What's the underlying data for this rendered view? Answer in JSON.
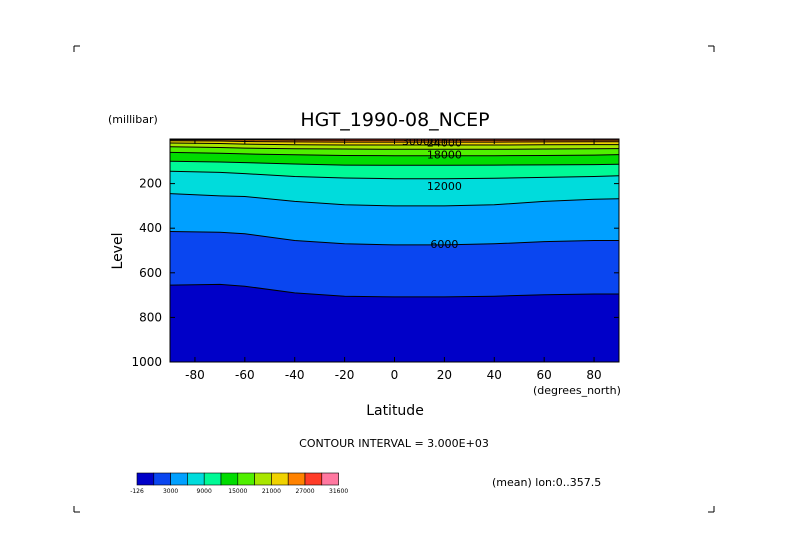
{
  "chart_data": {
    "type": "contour",
    "title": "HGT_1990-08_NCEP",
    "xlabel": "Latitude",
    "xunit": "(degrees_north)",
    "ylabel": "Level",
    "yunit": "(millibar)",
    "xlim": [
      -90,
      90
    ],
    "ylim": [
      1000,
      0
    ],
    "y_axis_reversed": true,
    "x_ticks": [
      "-80",
      "-60",
      "-40",
      "-20",
      "0",
      "20",
      "40",
      "60",
      "80"
    ],
    "x_tick_values": [
      -80,
      -60,
      -40,
      -20,
      0,
      20,
      40,
      60,
      80
    ],
    "y_ticks": [
      "200",
      "400",
      "600",
      "800",
      "1000"
    ],
    "y_tick_values": [
      200,
      400,
      600,
      800,
      1000
    ],
    "contour_interval_text": "CONTOUR INTERVAL = 3.000E+03",
    "mean_text": "(mean) lon:0..357.5",
    "contour_labels": [
      {
        "text": "30000",
        "lat": 10,
        "level": 10
      },
      {
        "text": "24000",
        "lat": 20,
        "level": 15
      },
      {
        "text": "18000",
        "lat": 20,
        "level": 70
      },
      {
        "text": "12000",
        "lat": 20,
        "level": 210
      },
      {
        "text": "6000",
        "lat": 20,
        "level": 470
      }
    ],
    "band_colors": [
      "#0000c8",
      "#0a46f0",
      "#00a0ff",
      "#00dcdc",
      "#00fa96",
      "#00dc00",
      "#50f000",
      "#a8e600",
      "#f0d200",
      "#ff8200",
      "#ff3c28",
      "#ff78a0"
    ],
    "contours": [
      {
        "value": 3000,
        "lat": [
          -90,
          -70,
          -60,
          -40,
          -20,
          0,
          20,
          40,
          60,
          80,
          90
        ],
        "level": [
          655,
          652,
          660,
          690,
          705,
          708,
          708,
          705,
          698,
          695,
          695
        ]
      },
      {
        "value": 6000,
        "lat": [
          -90,
          -70,
          -60,
          -40,
          -20,
          0,
          20,
          40,
          60,
          80,
          90
        ],
        "level": [
          415,
          418,
          425,
          455,
          470,
          475,
          475,
          470,
          460,
          455,
          455
        ]
      },
      {
        "value": 9000,
        "lat": [
          -90,
          -70,
          -60,
          -40,
          -20,
          0,
          20,
          40,
          60,
          80,
          90
        ],
        "level": [
          245,
          255,
          258,
          280,
          295,
          300,
          300,
          295,
          280,
          270,
          268
        ]
      },
      {
        "value": 12000,
        "lat": [
          -90,
          -70,
          -60,
          -40,
          -20,
          0,
          20,
          40,
          60,
          80,
          90
        ],
        "level": [
          145,
          150,
          155,
          168,
          175,
          178,
          178,
          176,
          172,
          168,
          165
        ]
      },
      {
        "value": 15000,
        "lat": [
          -90,
          -70,
          -60,
          -40,
          -20,
          0,
          20,
          40,
          60,
          80,
          90
        ],
        "level": [
          100,
          103,
          106,
          112,
          117,
          118,
          118,
          117,
          116,
          115,
          113
        ]
      },
      {
        "value": 18000,
        "lat": [
          -90,
          -70,
          -60,
          -40,
          -20,
          0,
          20,
          40,
          60,
          80,
          90
        ],
        "level": [
          60,
          64,
          67,
          71,
          74,
          75,
          75,
          75,
          74,
          72,
          70
        ]
      },
      {
        "value": 21000,
        "lat": [
          -90,
          -70,
          -60,
          -40,
          -20,
          0,
          20,
          40,
          60,
          80,
          90
        ],
        "level": [
          35,
          38,
          41,
          44,
          45,
          46,
          46,
          46,
          45,
          44,
          43
        ]
      },
      {
        "value": 24000,
        "lat": [
          -90,
          -70,
          -60,
          -40,
          -20,
          0,
          20,
          40,
          60,
          80,
          90
        ],
        "level": [
          18,
          20,
          23,
          26,
          27,
          27,
          27,
          27,
          26,
          25,
          25
        ]
      },
      {
        "value": 27000,
        "lat": [
          -90,
          -70,
          -60,
          -40,
          -20,
          0,
          20,
          40,
          60,
          80,
          90
        ],
        "level": [
          8,
          9,
          11,
          13,
          14,
          14,
          14,
          14,
          13,
          12,
          12
        ]
      },
      {
        "value": 30000,
        "lat": [
          -90,
          -70,
          -60,
          -40,
          -20,
          0,
          20,
          40,
          60,
          80,
          90
        ],
        "level": [
          3,
          3,
          4,
          5,
          6,
          6,
          6,
          6,
          5,
          5,
          5
        ]
      }
    ],
    "colorbar": {
      "colors": [
        "#0000c8",
        "#0a46f0",
        "#00a0ff",
        "#00dcdc",
        "#00fa96",
        "#00dc00",
        "#50f000",
        "#a8e600",
        "#f0d200",
        "#ff8200",
        "#ff3c28",
        "#ff78a0"
      ],
      "labels": [
        "-126",
        "3000",
        "9000",
        "15000",
        "21000",
        "27000",
        "31600"
      ],
      "label_after_box": [
        0,
        1,
        3,
        5,
        7,
        9,
        11
      ],
      "label_left_edge": [
        true,
        false,
        false,
        false,
        false,
        false,
        false
      ]
    }
  }
}
